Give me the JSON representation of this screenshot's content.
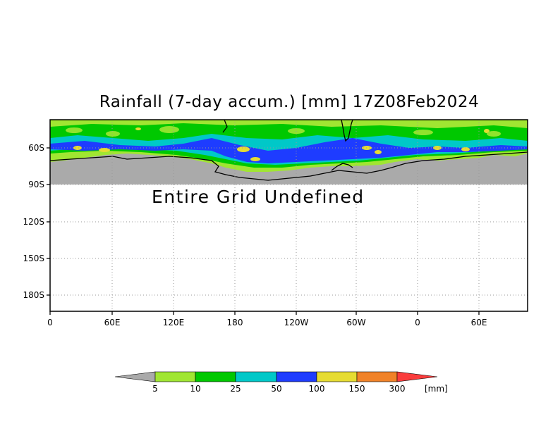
{
  "title": "Rainfall (7-day accum.) [mm] 17Z08Feb2024",
  "undefined_message": "Entire Grid Undefined",
  "map": {
    "y_axis_labels": [
      "60S",
      "90S",
      "120S",
      "150S",
      "180S"
    ],
    "x_axis_labels": [
      "0",
      "60E",
      "120E",
      "180",
      "120W",
      "60W",
      "0",
      "60E"
    ],
    "land_mask_color": "#aaaaaa",
    "grid": "dotted"
  },
  "colorbar": {
    "unit": "[mm]",
    "tick_labels": [
      "5",
      "10",
      "25",
      "50",
      "100",
      "150",
      "300"
    ],
    "colors": [
      "#aaaaaa",
      "#a0e632",
      "#00c800",
      "#00c8c8",
      "#1e3cff",
      "#e6dc32",
      "#f08228",
      "#fa3c3c"
    ]
  }
}
